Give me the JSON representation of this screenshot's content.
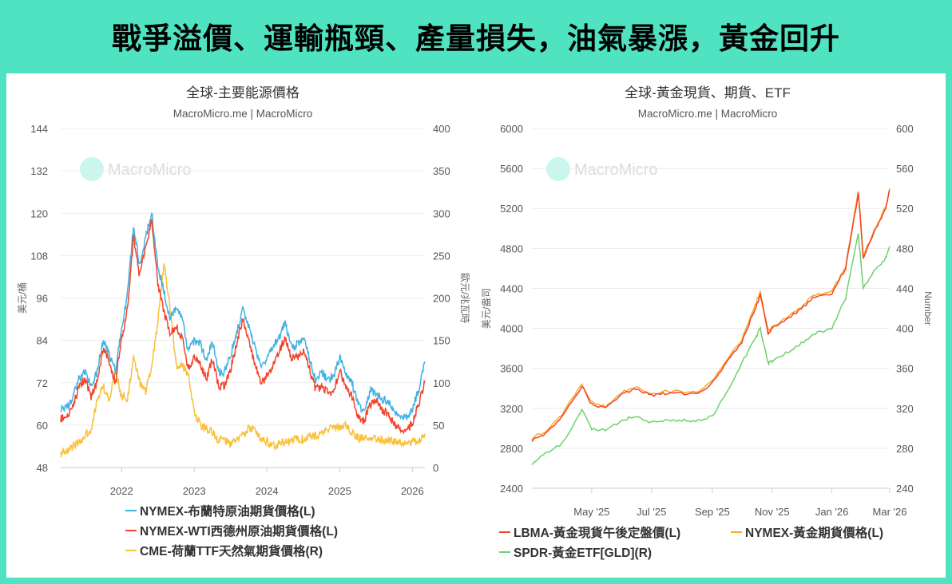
{
  "header": {
    "title": "戰爭溢價、運輸瓶頸、產量損失，油氣暴漲，黃金回升"
  },
  "colors": {
    "background": "#50e3c2",
    "brent": "#3fb1e3",
    "wti": "#f0442c",
    "ttf": "#f9c03a",
    "lbma": "#f0442c",
    "nymex_gold": "#f9a825",
    "gld": "#6cd26c"
  },
  "chart_data": [
    {
      "type": "line",
      "title": "全球-主要能源價格",
      "subtitle": "MacroMicro.me | MacroMicro",
      "watermark": "MacroMicro",
      "ylabel_left": "美元/桶",
      "ylabel_right": "歐元/兆瓦時",
      "ylim_left": [
        48,
        144
      ],
      "ylim_right": [
        0,
        400
      ],
      "yticks_left": [
        "144",
        "132",
        "120",
        "108",
        "96",
        "84",
        "72",
        "60",
        "48"
      ],
      "yticks_right": [
        "400",
        "350",
        "300",
        "250",
        "200",
        "150",
        "100",
        "50",
        "0"
      ],
      "xlim": [
        "2021-03-01",
        "2026-03-05"
      ],
      "xticks": [
        "2022",
        "2023",
        "2024",
        "2025",
        "2026"
      ],
      "grid": true,
      "legend": "bottom",
      "series": [
        {
          "name": "NYMEX-布蘭特原油期貨價格(L)",
          "axis": "left",
          "color": "#3fb1e3",
          "values": [
            65,
            65,
            68,
            73,
            75,
            71,
            75,
            84,
            80,
            75,
            87,
            97,
            117,
            105,
            113,
            120,
            105,
            98,
            90,
            93,
            90,
            81,
            84,
            83,
            78,
            84,
            75,
            75,
            80,
            86,
            93,
            88,
            82,
            77,
            79,
            82,
            85,
            89,
            82,
            83,
            85,
            79,
            73,
            75,
            73,
            74,
            79,
            75,
            72,
            66,
            64,
            70,
            69,
            67,
            67,
            63,
            63,
            62,
            65,
            70,
            78
          ]
        },
        {
          "name": "NYMEX-WTI西德州原油期貨價格(L)",
          "axis": "left",
          "color": "#f0442c",
          "values": [
            62,
            62,
            65,
            71,
            73,
            68,
            72,
            82,
            78,
            72,
            84,
            93,
            113,
            102,
            110,
            118,
            100,
            92,
            86,
            88,
            85,
            76,
            79,
            77,
            73,
            79,
            71,
            71,
            76,
            83,
            90,
            84,
            77,
            72,
            74,
            77,
            81,
            85,
            79,
            79,
            81,
            76,
            70,
            71,
            69,
            70,
            75,
            71,
            68,
            62,
            61,
            66,
            67,
            64,
            63,
            60,
            59,
            58,
            61,
            66,
            72
          ]
        },
        {
          "name": "CME-荷蘭TTF天然氣期貨價格(R)",
          "axis": "right",
          "color": "#f9c03a",
          "values": [
            17,
            20,
            25,
            30,
            38,
            45,
            80,
            95,
            80,
            115,
            85,
            80,
            130,
            100,
            90,
            120,
            170,
            240,
            190,
            120,
            120,
            110,
            65,
            50,
            45,
            42,
            32,
            32,
            28,
            33,
            37,
            47,
            45,
            35,
            30,
            25,
            27,
            30,
            33,
            35,
            33,
            38,
            37,
            40,
            45,
            47,
            48,
            50,
            42,
            35,
            35,
            37,
            34,
            32,
            32,
            31,
            30,
            28,
            30,
            32,
            40
          ]
        }
      ]
    },
    {
      "type": "line",
      "title": "全球-黃金現貨、期貨、ETF",
      "subtitle": "MacroMicro.me | MacroMicro",
      "watermark": "MacroMicro",
      "ylabel_left": "美元/盎司",
      "ylabel_right": "Number",
      "ylim_left": [
        2400,
        6000
      ],
      "ylim_right": [
        240,
        600
      ],
      "yticks_left": [
        "6000",
        "5600",
        "5200",
        "4800",
        "4400",
        "4000",
        "3600",
        "3200",
        "2800",
        "2400"
      ],
      "yticks_right": [
        "600",
        "560",
        "520",
        "480",
        "440",
        "400",
        "360",
        "320",
        "280",
        "240"
      ],
      "xlim": [
        "2025-03-01",
        "2026-03-01"
      ],
      "xticks": [
        "May '25",
        "Jul '25",
        "Sep '25",
        "Nov '25",
        "Jan '26",
        "Mar '26"
      ],
      "grid": true,
      "legend": "bottom",
      "dates": [
        "2025-03-01",
        "2025-03-15",
        "2025-04-01",
        "2025-04-21",
        "2025-05-01",
        "2025-05-15",
        "2025-06-01",
        "2025-06-15",
        "2025-07-01",
        "2025-07-15",
        "2025-08-01",
        "2025-08-15",
        "2025-09-01",
        "2025-09-15",
        "2025-10-01",
        "2025-10-15",
        "2025-10-20",
        "2025-10-28",
        "2025-11-01",
        "2025-11-15",
        "2025-12-01",
        "2025-12-15",
        "2026-01-01",
        "2026-01-15",
        "2026-01-28",
        "2026-02-02",
        "2026-02-15",
        "2026-02-25",
        "2026-03-01"
      ],
      "series": [
        {
          "name": "LBMA-黃金現貨午後定盤價(L)",
          "axis": "left",
          "color": "#f0442c",
          "values": [
            2880,
            2950,
            3120,
            3420,
            3240,
            3200,
            3340,
            3400,
            3330,
            3350,
            3350,
            3340,
            3450,
            3650,
            3860,
            4200,
            4330,
            3950,
            4000,
            4080,
            4200,
            4320,
            4350,
            4600,
            5350,
            4700,
            5000,
            5200,
            5380
          ]
        },
        {
          "name": "NYMEX-黃金期貨價格(L)",
          "axis": "left",
          "color": "#f9a825",
          "values": [
            2900,
            2970,
            3140,
            3440,
            3260,
            3220,
            3360,
            3420,
            3350,
            3370,
            3370,
            3360,
            3470,
            3670,
            3880,
            4230,
            4360,
            3970,
            4020,
            4100,
            4220,
            4340,
            4370,
            4620,
            5380,
            4720,
            5020,
            5220,
            5400
          ]
        },
        {
          "name": "SPDR-黃金ETF[GLD](R)",
          "axis": "right",
          "color": "#6cd26c",
          "values": [
            265,
            275,
            285,
            318,
            300,
            298,
            308,
            312,
            306,
            308,
            308,
            307,
            312,
            335,
            365,
            390,
            400,
            365,
            367,
            375,
            385,
            395,
            400,
            430,
            495,
            440,
            460,
            470,
            482
          ]
        }
      ]
    }
  ]
}
